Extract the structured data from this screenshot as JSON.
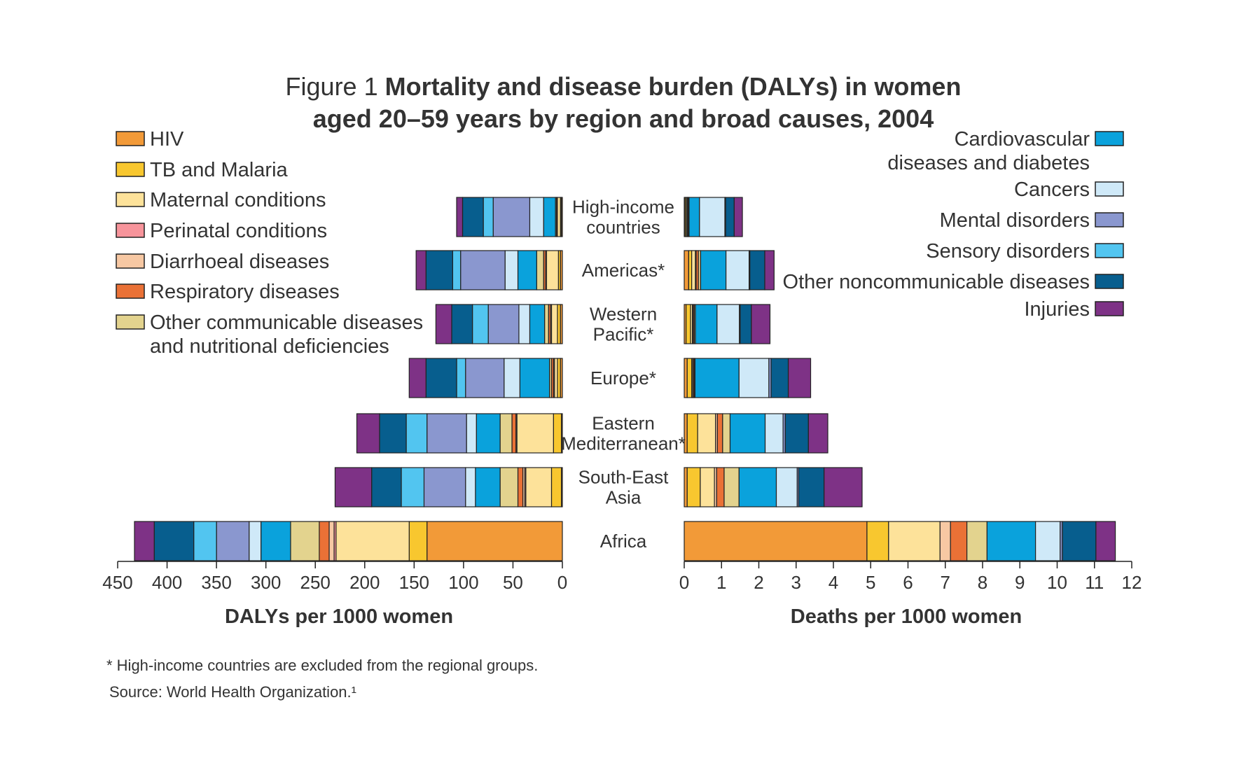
{
  "title": {
    "prefix": "Figure 1",
    "line1": "Mortality and disease burden (DALYs) in women",
    "line2": "aged 20–59 years by region and broad causes, 2004"
  },
  "footnotes": {
    "note": "* High-income countries are excluded from the regional groups.",
    "source": "Source: World Health Organization.¹"
  },
  "colors": {
    "HIV": "#f29a38",
    "TB and Malaria": "#f8c72f",
    "Maternal conditions": "#fde29a",
    "Perinatal conditions": "#f7949b",
    "Diarrhoeal diseases": "#f7c8a3",
    "Respiratory diseases": "#ea7136",
    "Other communicable diseases and nutritional deficiencies": "#e3d38e",
    "Cardiovascular diseases and diabetes": "#0aa2dc",
    "Cancers": "#cfe9f8",
    "Mental disorders": "#8a97cf",
    "Sensory disorders": "#52c5f0",
    "Other noncommunicable diseases": "#075e8e",
    "Injuries": "#7e3286"
  },
  "legend_left": [
    {
      "key": "HIV",
      "lines": [
        "HIV"
      ]
    },
    {
      "key": "TB and Malaria",
      "lines": [
        "TB and Malaria"
      ]
    },
    {
      "key": "Maternal conditions",
      "lines": [
        "Maternal conditions"
      ]
    },
    {
      "key": "Perinatal conditions",
      "lines": [
        "Perinatal conditions"
      ]
    },
    {
      "key": "Diarrhoeal diseases",
      "lines": [
        "Diarrhoeal diseases"
      ]
    },
    {
      "key": "Respiratory diseases",
      "lines": [
        "Respiratory diseases"
      ]
    },
    {
      "key": "Other communicable diseases and nutritional deficiencies",
      "lines": [
        "Other communicable diseases",
        "and nutritional deficiencies"
      ]
    }
  ],
  "legend_right": [
    {
      "key": "Cardiovascular diseases and diabetes",
      "lines": [
        "Cardiovascular",
        "diseases and diabetes"
      ]
    },
    {
      "key": "Cancers",
      "lines": [
        "Cancers"
      ]
    },
    {
      "key": "Mental disorders",
      "lines": [
        "Mental disorders"
      ]
    },
    {
      "key": "Sensory disorders",
      "lines": [
        "Sensory disorders"
      ]
    },
    {
      "key": "Other noncommunicable diseases",
      "lines": [
        "Other noncommunicable diseases"
      ]
    },
    {
      "key": "Injuries",
      "lines": [
        "Injuries"
      ]
    }
  ],
  "chart_data": [
    {
      "type": "bar",
      "stacked": true,
      "orientation": "horizontal",
      "direction": "right-to-left",
      "xlabel": "DALYs per 1000 women",
      "xlim": [
        0,
        450
      ],
      "xticks": [
        450,
        400,
        350,
        300,
        250,
        200,
        150,
        100,
        50,
        0
      ],
      "categories": [
        [
          "High-income",
          "countries"
        ],
        [
          "Americas*"
        ],
        [
          "Western",
          "Pacific*"
        ],
        [
          "Europe*"
        ],
        [
          "Eastern",
          "Mediterranean*"
        ],
        [
          "South-East",
          "Asia"
        ],
        [
          "Africa"
        ]
      ],
      "series": [
        {
          "name": "HIV",
          "values": [
            1,
            2,
            2,
            2,
            1,
            1,
            137
          ]
        },
        {
          "name": "TB and Malaria",
          "values": [
            1,
            2,
            3,
            3,
            8,
            10,
            18
          ]
        },
        {
          "name": "Maternal conditions",
          "values": [
            3,
            12,
            6,
            3,
            37,
            26,
            74
          ]
        },
        {
          "name": "Perinatal conditions",
          "values": [
            0,
            0,
            0,
            0,
            0,
            1,
            2
          ]
        },
        {
          "name": "Diarrhoeal diseases",
          "values": [
            0,
            1,
            1,
            1,
            1,
            2,
            5
          ]
        },
        {
          "name": "Respiratory diseases",
          "values": [
            1,
            2,
            2,
            2,
            4,
            5,
            10
          ]
        },
        {
          "name": "Other communicable diseases and nutritional deficiencies",
          "values": [
            1,
            7,
            4,
            2,
            12,
            18,
            29
          ]
        },
        {
          "name": "Cardiovascular diseases and diabetes",
          "values": [
            12,
            19,
            15,
            30,
            24,
            25,
            30
          ]
        },
        {
          "name": "Cancers",
          "values": [
            14,
            13,
            11,
            16,
            10,
            10,
            12
          ]
        },
        {
          "name": "Mental disorders",
          "values": [
            37,
            45,
            31,
            39,
            40,
            42,
            33
          ]
        },
        {
          "name": "Sensory disorders",
          "values": [
            10,
            8,
            16,
            9,
            21,
            23,
            23
          ]
        },
        {
          "name": "Other noncommunicable diseases",
          "values": [
            21,
            27,
            21,
            31,
            27,
            30,
            40
          ]
        },
        {
          "name": "Injuries",
          "values": [
            6,
            10,
            16,
            17,
            23,
            37,
            20
          ]
        }
      ]
    },
    {
      "type": "bar",
      "stacked": true,
      "orientation": "horizontal",
      "direction": "left-to-right",
      "xlabel": "Deaths per 1000 women",
      "xlim": [
        0,
        12
      ],
      "xticks": [
        0,
        1,
        2,
        3,
        4,
        5,
        6,
        7,
        8,
        9,
        10,
        11,
        12
      ],
      "categories": [
        [
          "High-income",
          "countries"
        ],
        [
          "Americas*"
        ],
        [
          "Western",
          "Pacific*"
        ],
        [
          "Europe*"
        ],
        [
          "Eastern",
          "Mediterranean*"
        ],
        [
          "South-East",
          "Asia"
        ],
        [
          "Africa"
        ]
      ],
      "series": [
        {
          "name": "HIV",
          "values": [
            0.02,
            0.12,
            0.05,
            0.08,
            0.08,
            0.08,
            4.9
          ]
        },
        {
          "name": "TB and Malaria",
          "values": [
            0.03,
            0.08,
            0.12,
            0.12,
            0.28,
            0.35,
            0.58
          ]
        },
        {
          "name": "Maternal conditions",
          "values": [
            0.03,
            0.1,
            0.05,
            0.03,
            0.48,
            0.38,
            1.38
          ]
        },
        {
          "name": "Perinatal conditions",
          "values": [
            0,
            0,
            0,
            0,
            0,
            0,
            0
          ]
        },
        {
          "name": "Diarrhoeal diseases",
          "values": [
            0.01,
            0.02,
            0.02,
            0.01,
            0.05,
            0.06,
            0.28
          ]
        },
        {
          "name": "Respiratory diseases",
          "values": [
            0.02,
            0.06,
            0.03,
            0.03,
            0.14,
            0.2,
            0.44
          ]
        },
        {
          "name": "Other communicable diseases and nutritional deficiencies",
          "values": [
            0.02,
            0.06,
            0.03,
            0.02,
            0.2,
            0.4,
            0.54
          ]
        },
        {
          "name": "Cardiovascular diseases and diabetes",
          "values": [
            0.28,
            0.68,
            0.58,
            1.18,
            0.94,
            1.0,
            1.3
          ]
        },
        {
          "name": "Cancers",
          "values": [
            0.68,
            0.62,
            0.6,
            0.8,
            0.48,
            0.56,
            0.66
          ]
        },
        {
          "name": "Mental disorders",
          "values": [
            0.02,
            0.02,
            0.02,
            0.06,
            0.06,
            0.04,
            0.06
          ]
        },
        {
          "name": "Sensory disorders",
          "values": [
            0,
            0,
            0,
            0,
            0,
            0,
            0
          ]
        },
        {
          "name": "Other noncommunicable diseases",
          "values": [
            0.23,
            0.4,
            0.3,
            0.46,
            0.62,
            0.68,
            0.9
          ]
        },
        {
          "name": "Injuries",
          "values": [
            0.22,
            0.25,
            0.5,
            0.6,
            0.52,
            1.02,
            0.52
          ]
        }
      ]
    }
  ]
}
